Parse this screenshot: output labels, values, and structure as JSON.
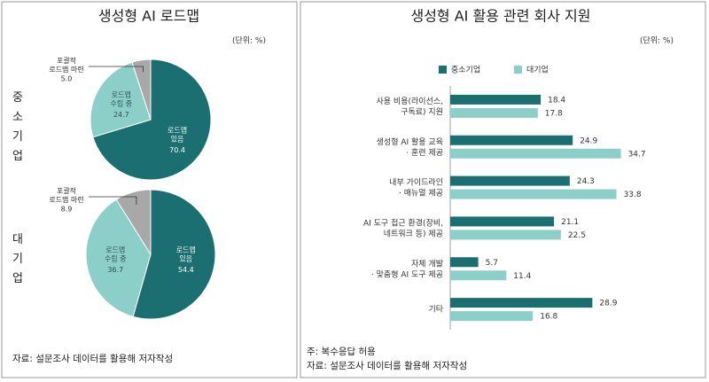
{
  "chart_data": [
    {
      "type": "pie",
      "title": "생성형 AI 로드맵",
      "unit": "(단위: %)",
      "group": "중소기업",
      "categories": [
        "로드맵\n있음",
        "로드맵\n수립 중",
        "포괄적\n로드맵 마련"
      ],
      "values": [
        70.4,
        24.7,
        5.0
      ],
      "value_labels": [
        "70.4",
        "24.7",
        "5.0"
      ],
      "colors": [
        "#1b6f71",
        "#8ccfc8",
        "#a8a8a8"
      ]
    },
    {
      "type": "pie",
      "group": "대기업",
      "source": "자료: 설문조사 데이터를 활용해 저자작성",
      "categories": [
        "로드맵\n있음",
        "로드맵\n수립 중",
        "포괄적\n로드맵 마련"
      ],
      "values": [
        54.4,
        36.7,
        8.9
      ],
      "value_labels": [
        "54.4",
        "36.7",
        "8.9"
      ],
      "colors": [
        "#1b6f71",
        "#8ccfc8",
        "#a8a8a8"
      ]
    },
    {
      "type": "hbar",
      "title": "생성형 AI 활용 관련 회사 지원",
      "unit": "(단위: %)",
      "categories": [
        "사용 비용(라이선스,\n구독료) 지원",
        "생성형 AI 활용 교육\n· 훈련 제공",
        "내부 가이드라인\n· 매뉴얼 제공",
        "AI 도구 접근 환경(장비,\n네트워크 등) 제공",
        "자체 개발\n· 맞춤형 AI 도구 제공",
        "기타"
      ],
      "series": [
        {
          "name": "중소기업",
          "color": "#1b6f71",
          "values": [
            18.4,
            24.9,
            24.3,
            21.1,
            5.7,
            28.9
          ]
        },
        {
          "name": "대기업",
          "color": "#8ccfc8",
          "values": [
            17.8,
            34.7,
            33.8,
            22.5,
            11.4,
            16.8
          ]
        }
      ],
      "xlim": [
        0,
        40
      ],
      "notes": [
        "주: 복수응답 허용",
        "자료: 설문조사 데이터를 활용해 저자작성"
      ]
    }
  ]
}
